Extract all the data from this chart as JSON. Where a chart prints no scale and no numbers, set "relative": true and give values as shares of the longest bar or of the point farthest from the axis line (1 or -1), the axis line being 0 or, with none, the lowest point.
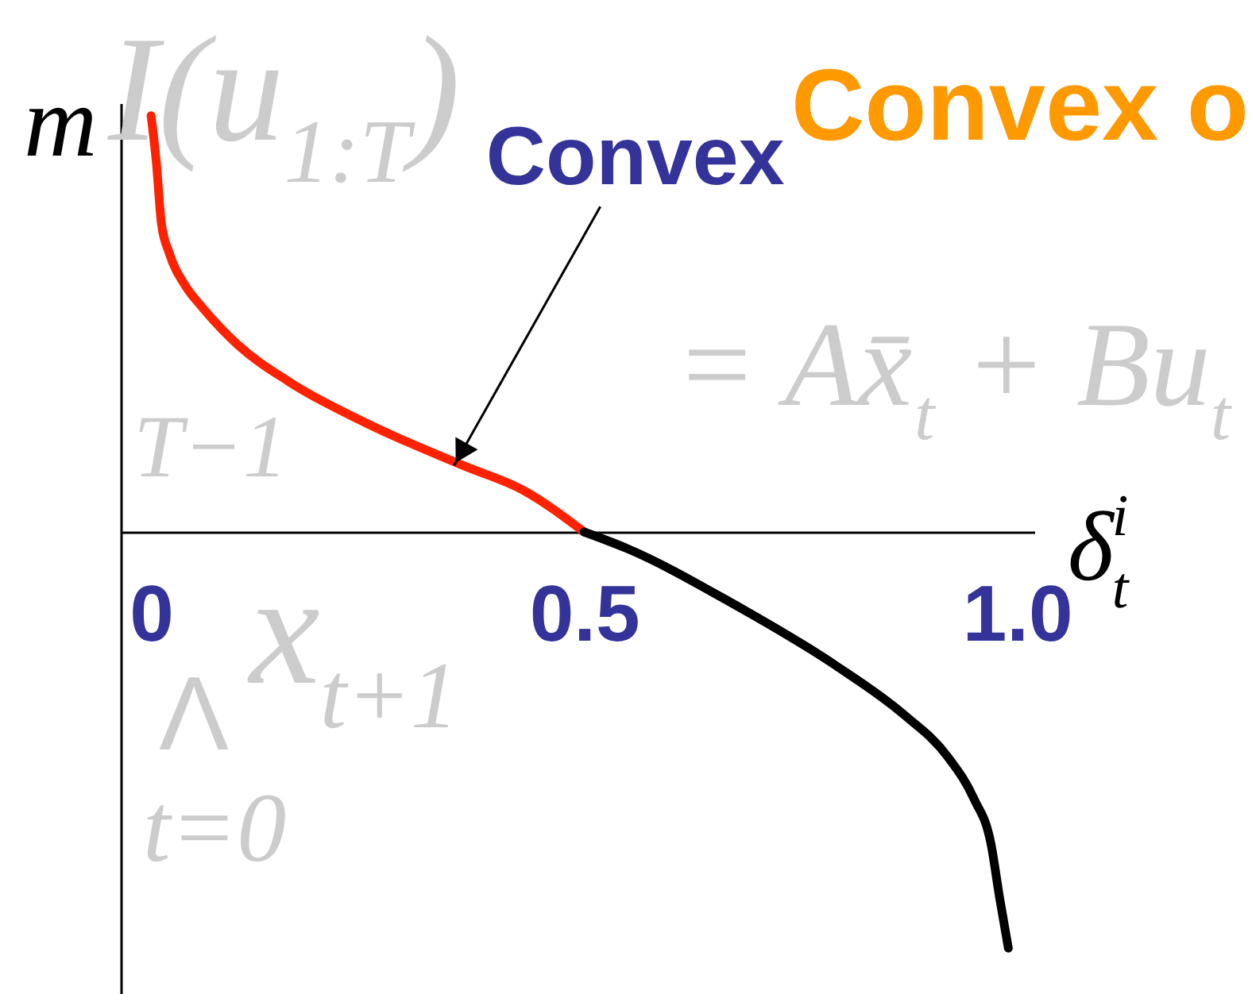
{
  "chart_data": {
    "type": "line",
    "title": "Convex o",
    "xlabel": "δ$^{i}$$_{t}$",
    "ylabel": "m",
    "xlim": [
      -0.035,
      1.02
    ],
    "xticks": [
      0,
      0.5,
      {
        "value": 1,
        "label": "1.0"
      }
    ],
    "relative": true,
    "tick_labels": "x",
    "line_style": "solid",
    "series": [
      {
        "color": "#ff2200",
        "x": [
          0,
          0.006,
          0.012,
          0.021,
          0.04,
          0.059,
          0.1,
          0.16,
          0.25,
          0.36,
          0.43,
          0.5
        ],
        "values": [
          1,
          0.89,
          0.74,
          0.67,
          0.59,
          0.54,
          0.45,
          0.36,
          0.26,
          0.16,
          0.1,
          0
        ]
      },
      {
        "color": "#000000",
        "x": [
          0.5,
          0.55,
          0.67,
          0.79,
          0.87,
          0.92,
          0.95,
          0.97,
          0.98,
          0.99
        ],
        "values": [
          0,
          -0.04,
          -0.17,
          -0.32,
          -0.44,
          -0.54,
          -0.64,
          -0.75,
          -0.88,
          -1
        ]
      }
    ],
    "annotations": [
      "I(u$_{1:T}$)",
      "T−1",
      "Λ",
      "t=0",
      "x$_{t+1}$",
      "= Ax̄$_{t}$ + Bu$_{t}$",
      {
        "text": "Convex",
        "x": 0.35,
        "y": 0.16
      }
    ]
  }
}
